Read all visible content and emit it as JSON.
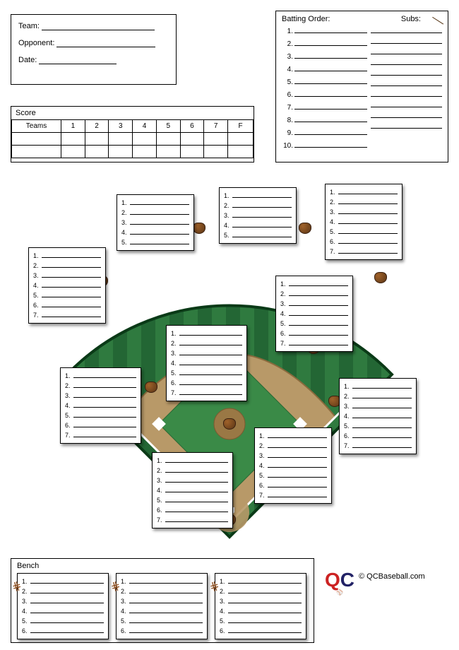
{
  "teamInfo": {
    "teamLabel": "Team:",
    "opponentLabel": "Opponent:",
    "dateLabel": "Date:"
  },
  "battingOrder": {
    "title": "Batting Order:",
    "subsTitle": "Subs:",
    "numbers": [
      "1.",
      "2.",
      "3.",
      "4.",
      "5.",
      "6.",
      "7.",
      "8.",
      "9.",
      "10."
    ]
  },
  "score": {
    "title": "Score",
    "teamsLabel": "Teams",
    "columns": [
      "1",
      "2",
      "3",
      "4",
      "5",
      "6",
      "7",
      "F"
    ]
  },
  "positions": {
    "lines5": [
      "1.",
      "2.",
      "3.",
      "4.",
      "5."
    ],
    "lines7": [
      "1.",
      "2.",
      "3.",
      "4.",
      "5.",
      "6.",
      "7."
    ],
    "lines6": [
      "1.",
      "2.",
      "3.",
      "4.",
      "5.",
      "6."
    ]
  },
  "field": {
    "grass_color": "#2f7a3f",
    "grass_stripe": "#236634",
    "dirt_color": "#a88753",
    "dirt_dark": "#8a6a3d",
    "infield_color": "#b89968",
    "line_color": "#ffffff"
  },
  "bench": {
    "title": "Bench",
    "lines6": [
      "1.",
      "2.",
      "3.",
      "4.",
      "5.",
      "6."
    ]
  },
  "copyright": {
    "text": "© QCBaseball.com"
  }
}
